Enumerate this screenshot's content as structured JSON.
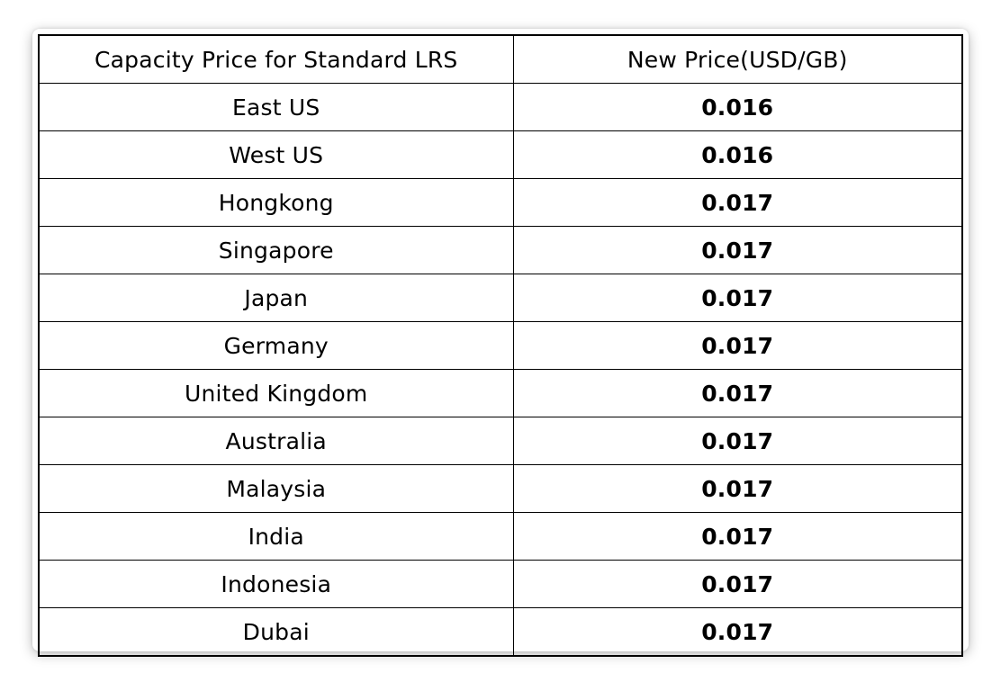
{
  "table": {
    "headers": [
      "Capacity Price for Standard LRS",
      "New Price(USD/GB)"
    ],
    "rows": [
      {
        "region": "East US",
        "price": "0.016"
      },
      {
        "region": "West US",
        "price": "0.016"
      },
      {
        "region": "Hongkong",
        "price": "0.017"
      },
      {
        "region": "Singapore",
        "price": "0.017"
      },
      {
        "region": "Japan",
        "price": "0.017"
      },
      {
        "region": "Germany",
        "price": "0.017"
      },
      {
        "region": "United Kingdom",
        "price": "0.017"
      },
      {
        "region": "Australia",
        "price": "0.017"
      },
      {
        "region": "Malaysia",
        "price": "0.017"
      },
      {
        "region": "India",
        "price": "0.017"
      },
      {
        "region": "Indonesia",
        "price": "0.017"
      },
      {
        "region": "Dubai",
        "price": "0.017"
      }
    ]
  },
  "colors": {
    "border": "#000000",
    "text": "#000000",
    "background": "#ffffff"
  }
}
